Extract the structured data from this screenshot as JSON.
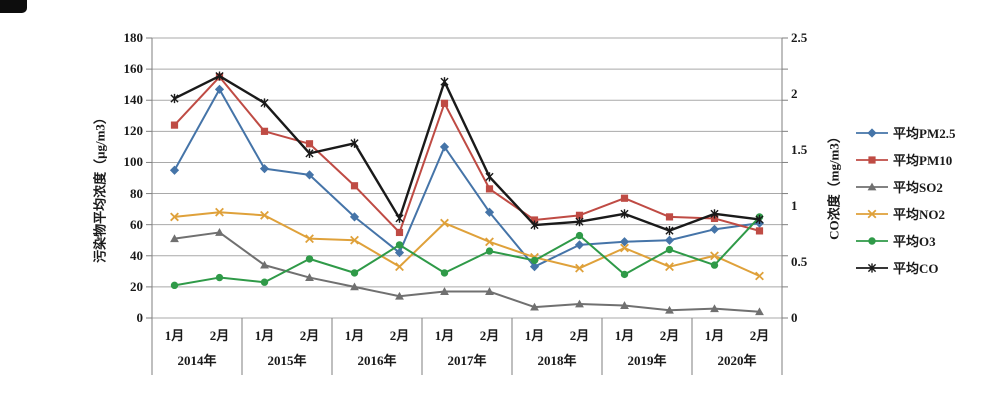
{
  "page": {
    "background": "#ffffff"
  },
  "chart_data": {
    "type": "line",
    "title": "",
    "grid": true,
    "legend_position": "right",
    "left_axis": {
      "label": "污染物平均浓度（μg/m3）",
      "min": 0,
      "max": 180,
      "step": 20,
      "ticks": [
        "180",
        "160",
        "140",
        "120",
        "100",
        "80",
        "60",
        "40",
        "20",
        "0"
      ]
    },
    "right_axis": {
      "label": "CO浓度（mg/m3）",
      "min": 0,
      "max": 2.5,
      "step": 0.5,
      "ticks": [
        "2.5",
        "2",
        "1.5",
        "1",
        "0.5",
        "0"
      ]
    },
    "groups": [
      {
        "year": "2014年",
        "months": [
          "1月",
          "2月"
        ]
      },
      {
        "year": "2015年",
        "months": [
          "1月",
          "2月"
        ]
      },
      {
        "year": "2016年",
        "months": [
          "1月",
          "2月"
        ]
      },
      {
        "year": "2017年",
        "months": [
          "1月",
          "2月"
        ]
      },
      {
        "year": "2018年",
        "months": [
          "1月",
          "2月"
        ]
      },
      {
        "year": "2019年",
        "months": [
          "1月",
          "2月"
        ]
      },
      {
        "year": "2020年",
        "months": [
          "1月",
          "2月"
        ]
      }
    ],
    "series": [
      {
        "key": "pm25",
        "name": "平均PM2.5",
        "axis": "left",
        "color": "#4574a8",
        "marker": "diamond",
        "values": [
          95,
          147,
          96,
          92,
          65,
          42,
          110,
          68,
          33,
          47,
          49,
          50,
          57,
          61
        ]
      },
      {
        "key": "pm10",
        "name": "平均PM10",
        "axis": "left",
        "color": "#bf4b44",
        "marker": "square",
        "values": [
          124,
          155,
          120,
          112,
          85,
          55,
          138,
          83,
          63,
          66,
          77,
          65,
          64,
          56
        ]
      },
      {
        "key": "so2",
        "name": "平均SO2",
        "axis": "left",
        "color": "#707070",
        "marker": "triangle",
        "values": [
          51,
          55,
          34,
          26,
          20,
          14,
          17,
          17,
          7,
          9,
          8,
          5,
          6,
          4
        ]
      },
      {
        "key": "no2",
        "name": "平均NO2",
        "axis": "left",
        "color": "#dfa13a",
        "marker": "x",
        "values": [
          65,
          68,
          66,
          51,
          50,
          33,
          61,
          49,
          39,
          32,
          45,
          33,
          40,
          27
        ]
      },
      {
        "key": "o3",
        "name": "平均O3",
        "axis": "left",
        "color": "#2f9a48",
        "marker": "circle",
        "values": [
          21,
          26,
          23,
          38,
          29,
          47,
          29,
          43,
          37,
          53,
          28,
          44,
          34,
          65
        ]
      },
      {
        "key": "co",
        "name": "平均CO",
        "axis": "right",
        "color": "#1a1a1a",
        "marker": "star",
        "values": [
          1.96,
          2.16,
          1.92,
          1.47,
          1.56,
          0.89,
          2.11,
          1.26,
          0.83,
          0.86,
          0.93,
          0.78,
          0.93,
          0.88
        ]
      }
    ]
  }
}
